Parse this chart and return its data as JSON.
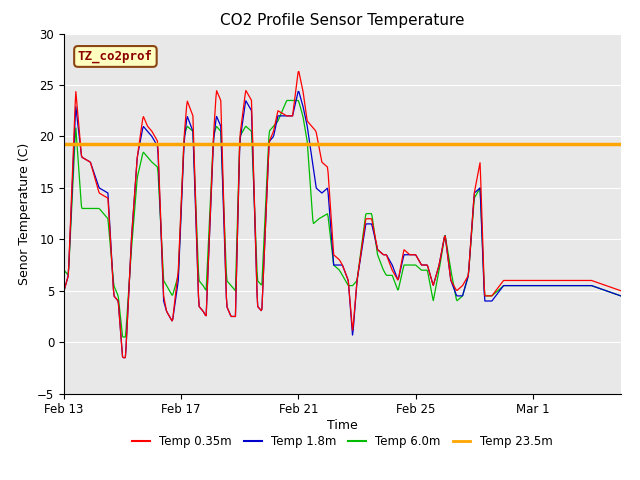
{
  "title": "CO2 Profile Sensor Temperature",
  "ylabel": "Senor Temperature (C)",
  "xlabel": "Time",
  "ylim": [
    -5,
    30
  ],
  "yticks": [
    -5,
    0,
    5,
    10,
    15,
    20,
    25,
    30
  ],
  "horizontal_line_y": 19.3,
  "horizontal_line_color": "#FFA500",
  "annotation_text": "TZ_co2prof",
  "annotation_bg": "#FFFFC0",
  "annotation_border": "#8B4513",
  "plot_bg": "#E8E8E8",
  "line_colors": {
    "temp035": "#FF0000",
    "temp18": "#0000CC",
    "temp60": "#00BB00",
    "temp235": "#FFA500"
  },
  "legend_labels": [
    "Temp 0.35m",
    "Temp 1.8m",
    "Temp 6.0m",
    "Temp 23.5m"
  ],
  "x_tick_labels": [
    "Feb 13",
    "Feb 17",
    "Feb 21",
    "Feb 25",
    "Mar 1"
  ],
  "figsize": [
    6.4,
    4.8
  ],
  "dpi": 100
}
